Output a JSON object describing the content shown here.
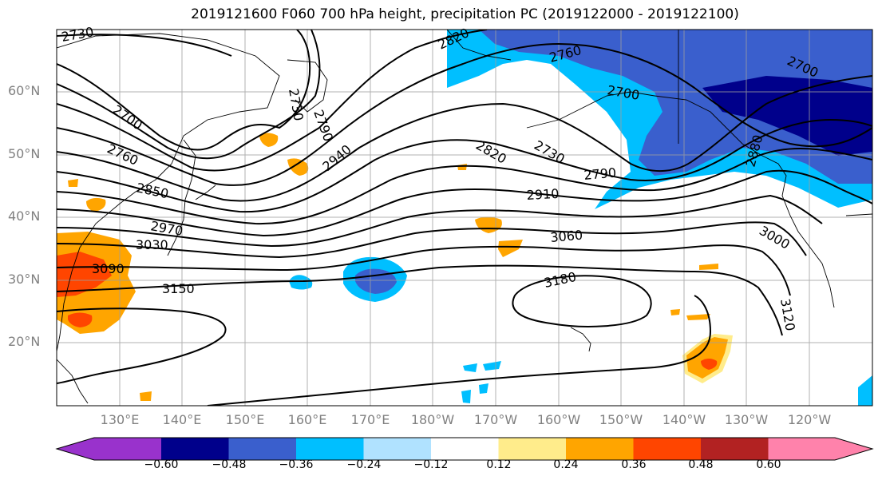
{
  "title": "2019121600 F060 700 hPa height, precipitation PC (2019122000 - 2019122100)",
  "lat_labels": [
    "60°N",
    "50°N",
    "40°N",
    "30°N",
    "20°N"
  ],
  "lon_labels": [
    "130°E",
    "140°E",
    "150°E",
    "160°E",
    "170°E",
    "180°W",
    "170°W",
    "160°W",
    "150°W",
    "140°W",
    "130°W",
    "120°W"
  ],
  "contour_labels": [
    "2730",
    "2820",
    "2760",
    "2700",
    "2700",
    "2700",
    "2730",
    "2760",
    "2850",
    "2940",
    "2820",
    "2730",
    "2790",
    "2910",
    "2970",
    "3030",
    "3090",
    "3060",
    "3000",
    "3150",
    "3180",
    "3120",
    "2880",
    "2790"
  ],
  "colorbar": {
    "labels": [
      "−0.60",
      "−0.48",
      "−0.36",
      "−0.24",
      "−0.12",
      "0.12",
      "0.24",
      "0.36",
      "0.48",
      "0.60"
    ],
    "colors": [
      "#9932cc",
      "#00008b",
      "#3a5fcd",
      "#00bfff",
      "#b0e2ff",
      "#ffffff",
      "#ffec8b",
      "#ffa500",
      "#ff4500",
      "#b22222",
      "#ff82ab"
    ]
  }
}
